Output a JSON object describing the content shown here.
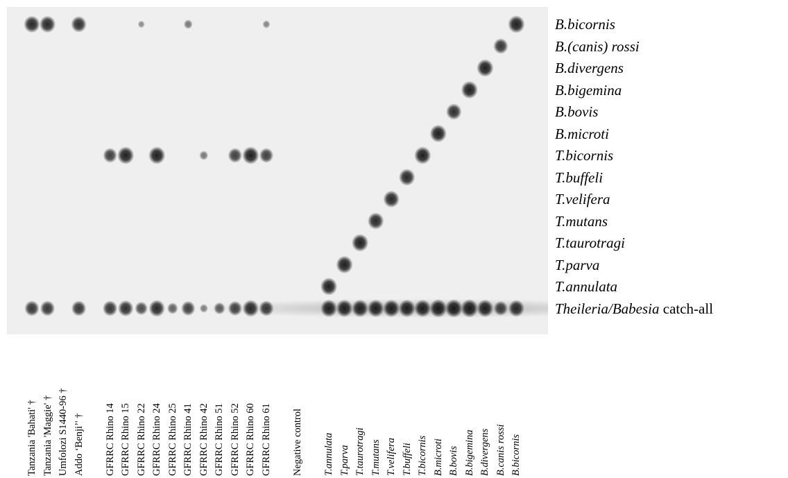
{
  "probes": [
    {
      "label": "B.bicornis",
      "suffix": ""
    },
    {
      "label": "B.(canis) rossi",
      "suffix": ""
    },
    {
      "label": "B.divergens",
      "suffix": ""
    },
    {
      "label": "B.bigemina",
      "suffix": ""
    },
    {
      "label": "B.bovis",
      "suffix": ""
    },
    {
      "label": "B.microti",
      "suffix": ""
    },
    {
      "label": "T.bicornis",
      "suffix": ""
    },
    {
      "label": "T.buffeli",
      "suffix": ""
    },
    {
      "label": "T.velifera",
      "suffix": ""
    },
    {
      "label": "T.mutans",
      "suffix": ""
    },
    {
      "label": "T.taurotragi",
      "suffix": ""
    },
    {
      "label": "T.parva",
      "suffix": ""
    },
    {
      "label": "T.annulata",
      "suffix": ""
    },
    {
      "label": "Theileria/Babesia",
      "suffix": " catch-all"
    }
  ],
  "lanes": [
    {
      "label": "Tanzania 'Bahati' †",
      "italic": false
    },
    {
      "label": "Tanzania 'Maggie' †",
      "italic": false
    },
    {
      "label": "Umfolozi S1440-96 †",
      "italic": false
    },
    {
      "label": "Addo ‘Benji’' †",
      "italic": false
    },
    {
      "label": "",
      "italic": false
    },
    {
      "label": "GFRRC Rhino 14",
      "italic": false
    },
    {
      "label": "GFRRC Rhino 15",
      "italic": false
    },
    {
      "label": "GFRRC Rhino 22",
      "italic": false
    },
    {
      "label": "GFRRC Rhino 24",
      "italic": false
    },
    {
      "label": "GFRRC Rhino 25",
      "italic": false
    },
    {
      "label": "GFRRC Rhino 41",
      "italic": false
    },
    {
      "label": "GFRRC Rhino 42",
      "italic": false
    },
    {
      "label": "GFRRC Rhino 51",
      "italic": false
    },
    {
      "label": "GFRRC Rhino 52",
      "italic": false
    },
    {
      "label": "GFRRC Rhino 60",
      "italic": false
    },
    {
      "label": "GFRRC Rhino 61",
      "italic": false
    },
    {
      "label": "",
      "italic": false
    },
    {
      "label": "Negative control",
      "italic": false
    },
    {
      "label": "",
      "italic": false
    },
    {
      "label": "T.annulata",
      "italic": true
    },
    {
      "label": "T.parva",
      "italic": true
    },
    {
      "label": "T.taurotragi",
      "italic": true
    },
    {
      "label": "T.mutans",
      "italic": true
    },
    {
      "label": "T.velifera",
      "italic": true
    },
    {
      "label": "T.buffeli",
      "italic": true
    },
    {
      "label": "T.bicornis",
      "italic": true
    },
    {
      "label": "B.microti",
      "italic": true
    },
    {
      "label": "B.bovis",
      "italic": true
    },
    {
      "label": "B.bigemina",
      "italic": true
    },
    {
      "label": "B.divergens",
      "italic": true
    },
    {
      "label": "B.canis rossi",
      "italic": true
    },
    {
      "label": "B.bicornis",
      "italic": true
    }
  ],
  "signals": [
    {
      "lane": 0,
      "probe": 0,
      "intensity": 0.85
    },
    {
      "lane": 1,
      "probe": 0,
      "intensity": 0.85
    },
    {
      "lane": 3,
      "probe": 0,
      "intensity": 0.8
    },
    {
      "lane": 7,
      "probe": 0,
      "intensity": 0.15
    },
    {
      "lane": 10,
      "probe": 0,
      "intensity": 0.3
    },
    {
      "lane": 15,
      "probe": 0,
      "intensity": 0.2
    },
    {
      "lane": 5,
      "probe": 6,
      "intensity": 0.7
    },
    {
      "lane": 6,
      "probe": 6,
      "intensity": 0.9
    },
    {
      "lane": 8,
      "probe": 6,
      "intensity": 0.9
    },
    {
      "lane": 11,
      "probe": 6,
      "intensity": 0.3
    },
    {
      "lane": 13,
      "probe": 6,
      "intensity": 0.7
    },
    {
      "lane": 14,
      "probe": 6,
      "intensity": 0.9
    },
    {
      "lane": 15,
      "probe": 6,
      "intensity": 0.7
    },
    {
      "lane": 0,
      "probe": 13,
      "intensity": 0.75
    },
    {
      "lane": 1,
      "probe": 13,
      "intensity": 0.75
    },
    {
      "lane": 3,
      "probe": 13,
      "intensity": 0.75
    },
    {
      "lane": 5,
      "probe": 13,
      "intensity": 0.75
    },
    {
      "lane": 6,
      "probe": 13,
      "intensity": 0.8
    },
    {
      "lane": 7,
      "probe": 13,
      "intensity": 0.6
    },
    {
      "lane": 8,
      "probe": 13,
      "intensity": 0.85
    },
    {
      "lane": 9,
      "probe": 13,
      "intensity": 0.45
    },
    {
      "lane": 10,
      "probe": 13,
      "intensity": 0.7
    },
    {
      "lane": 11,
      "probe": 13,
      "intensity": 0.25
    },
    {
      "lane": 12,
      "probe": 13,
      "intensity": 0.5
    },
    {
      "lane": 13,
      "probe": 13,
      "intensity": 0.7
    },
    {
      "lane": 14,
      "probe": 13,
      "intensity": 0.85
    },
    {
      "lane": 15,
      "probe": 13,
      "intensity": 0.75
    },
    {
      "lane": 19,
      "probe": 12,
      "intensity": 0.9
    },
    {
      "lane": 20,
      "probe": 11,
      "intensity": 0.9
    },
    {
      "lane": 21,
      "probe": 10,
      "intensity": 0.9
    },
    {
      "lane": 22,
      "probe": 9,
      "intensity": 0.85
    },
    {
      "lane": 23,
      "probe": 8,
      "intensity": 0.85
    },
    {
      "lane": 24,
      "probe": 7,
      "intensity": 0.85
    },
    {
      "lane": 25,
      "probe": 6,
      "intensity": 0.9
    },
    {
      "lane": 26,
      "probe": 5,
      "intensity": 0.9
    },
    {
      "lane": 27,
      "probe": 4,
      "intensity": 0.8
    },
    {
      "lane": 28,
      "probe": 3,
      "intensity": 0.9
    },
    {
      "lane": 29,
      "probe": 2,
      "intensity": 0.9
    },
    {
      "lane": 30,
      "probe": 1,
      "intensity": 0.75
    },
    {
      "lane": 31,
      "probe": 0,
      "intensity": 0.9
    },
    {
      "lane": 19,
      "probe": 13,
      "intensity": 0.9
    },
    {
      "lane": 20,
      "probe": 13,
      "intensity": 0.9
    },
    {
      "lane": 21,
      "probe": 13,
      "intensity": 0.9
    },
    {
      "lane": 22,
      "probe": 13,
      "intensity": 0.9
    },
    {
      "lane": 23,
      "probe": 13,
      "intensity": 0.9
    },
    {
      "lane": 24,
      "probe": 13,
      "intensity": 0.9
    },
    {
      "lane": 25,
      "probe": 13,
      "intensity": 0.9
    },
    {
      "lane": 26,
      "probe": 13,
      "intensity": 0.95
    },
    {
      "lane": 27,
      "probe": 13,
      "intensity": 0.95
    },
    {
      "lane": 28,
      "probe": 13,
      "intensity": 0.95
    },
    {
      "lane": 29,
      "probe": 13,
      "intensity": 0.9
    },
    {
      "lane": 30,
      "probe": 13,
      "intensity": 0.7
    },
    {
      "lane": 31,
      "probe": 13,
      "intensity": 0.85
    }
  ]
}
